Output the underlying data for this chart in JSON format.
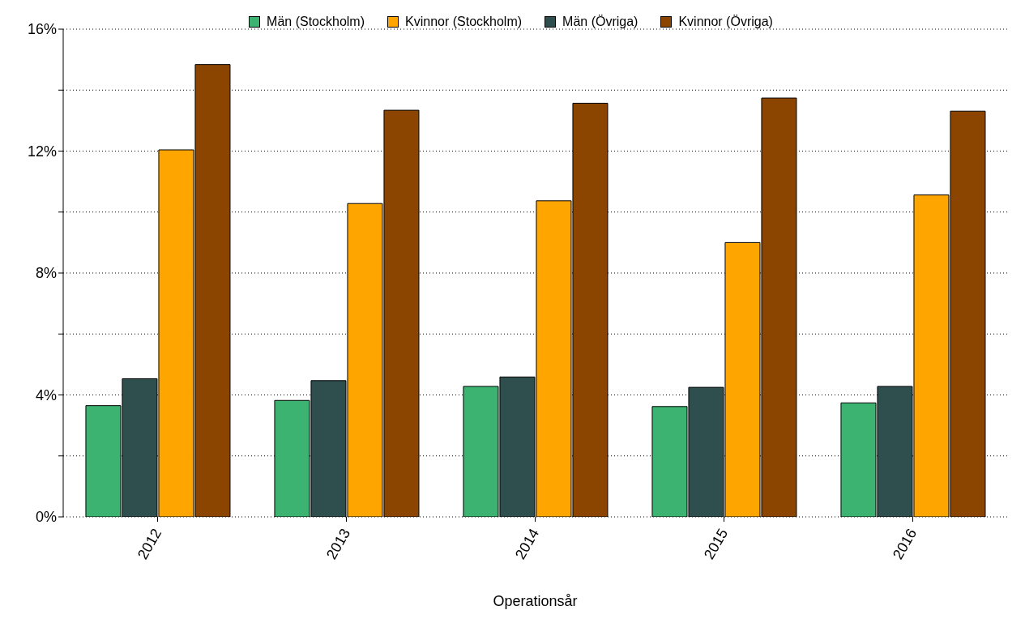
{
  "chart_data": {
    "type": "bar",
    "xlabel": "Operationsår",
    "categories": [
      "2012",
      "2013",
      "2014",
      "2015",
      "2016"
    ],
    "series": [
      {
        "name": "Män (Stockholm)",
        "color": "#3cb371",
        "values": [
          3.65,
          3.82,
          4.28,
          3.62,
          3.74
        ]
      },
      {
        "name": "Kvinnor (Stockholm)",
        "color": "#ffa500",
        "values": [
          12.04,
          10.28,
          10.37,
          9.0,
          10.56
        ]
      },
      {
        "name": "Män (Övriga)",
        "color": "#2f4f4f",
        "values": [
          4.53,
          4.47,
          4.59,
          4.25,
          4.28
        ]
      },
      {
        "name": "Kvinnor (Övriga)",
        "color": "#8b4500",
        "values": [
          14.84,
          13.34,
          13.57,
          13.74,
          13.31
        ]
      }
    ],
    "ylim": [
      0,
      16
    ],
    "yticks": [
      {
        "value": 0,
        "label": "0%"
      },
      {
        "value": 2,
        "label": null
      },
      {
        "value": 4,
        "label": "4%"
      },
      {
        "value": 6,
        "label": null
      },
      {
        "value": 8,
        "label": "8%"
      },
      {
        "value": 10,
        "label": null
      },
      {
        "value": 12,
        "label": "12%"
      },
      {
        "value": 14,
        "label": null
      },
      {
        "value": 16,
        "label": "16%"
      }
    ],
    "grid": "y",
    "legend": "top"
  }
}
